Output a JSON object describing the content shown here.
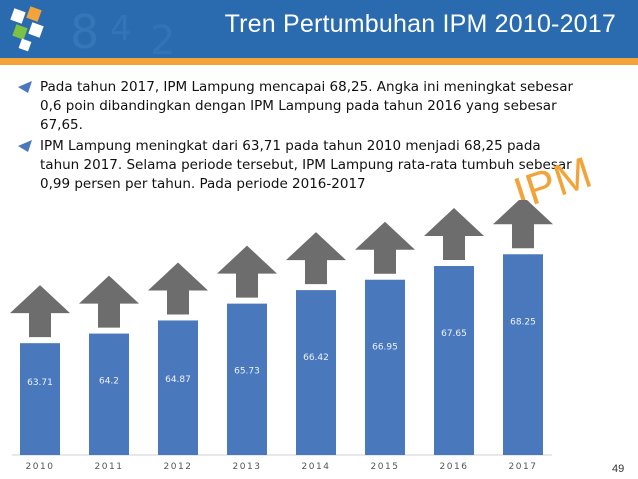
{
  "slide": {
    "title": "Tren Pertumbuhan IPM 2010-2017",
    "page_number": "49",
    "watermark": "IPM",
    "bullets": [
      "Pada tahun 2017, IPM Lampung mencapai 68,25. Angka ini meningkat sebesar 0,6 poin dibandingkan dengan IPM Lampung pada tahun 2016 yang sebesar 67,65.",
      "IPM Lampung meningkat dari 63,71 pada tahun 2010 menjadi 68,25 pada tahun 2017. Selama periode tersebut, IPM Lampung rata-rata tumbuh sebesar 0,99 persen per tahun. Pada periode 2016-2017"
    ]
  },
  "colors": {
    "header": "#2a6bb0",
    "accent": "#f2a43a",
    "bar": "#4a78bd",
    "arrow": "#6d6d6d"
  },
  "chart_data": {
    "type": "bar",
    "categories": [
      "2010",
      "2011",
      "2012",
      "2013",
      "2014",
      "2015",
      "2016",
      "2017"
    ],
    "values": [
      63.71,
      64.2,
      64.87,
      65.73,
      66.42,
      66.95,
      67.65,
      68.25
    ],
    "value_labels": [
      "63.71",
      "64.2",
      "64.87",
      "65.73",
      "66.42",
      "66.95",
      "67.65",
      "68.25"
    ],
    "ylim": [
      58,
      70
    ],
    "grid": false,
    "legend": "none"
  }
}
